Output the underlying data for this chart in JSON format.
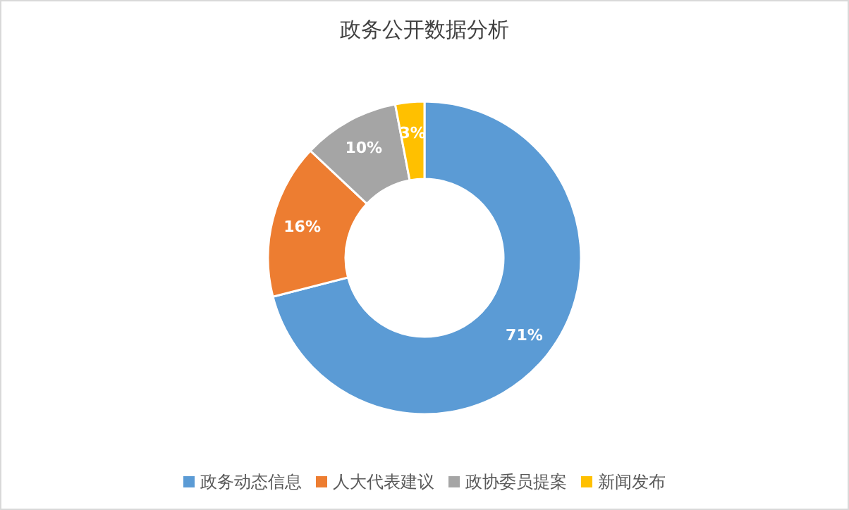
{
  "chart_data": {
    "type": "donut",
    "title": "政务公开数据分析",
    "categories": [
      "政务动态信息",
      "人大代表建议",
      "政协委员提案",
      "新闻发布"
    ],
    "values": [
      71,
      16,
      10,
      3
    ],
    "colors": [
      "#5b9bd5",
      "#ed7d31",
      "#a5a5a5",
      "#ffc000"
    ],
    "value_labels": [
      "71%",
      "16%",
      "10%",
      "3%"
    ],
    "legend": "bottom"
  }
}
